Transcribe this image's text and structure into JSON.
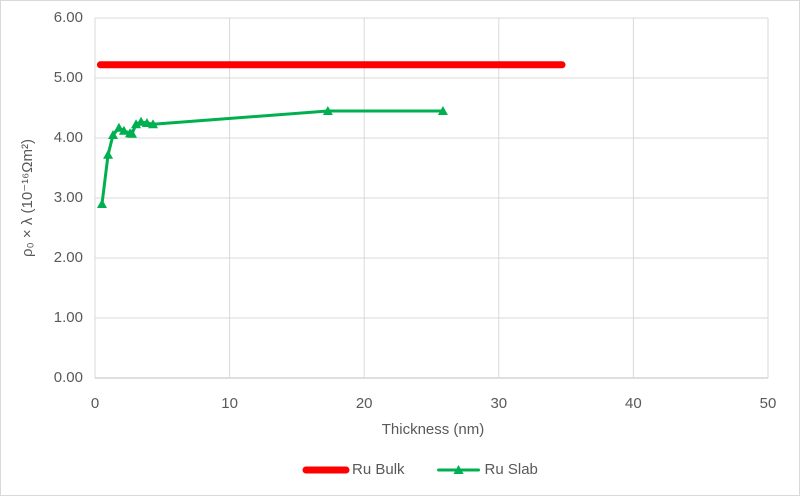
{
  "chart_data": {
    "type": "line",
    "x_label": "Thickness (nm)",
    "y_label": "ρ₀ × λ (10⁻¹⁶Ωm²)",
    "xlim": [
      0,
      50
    ],
    "xticks": [
      0,
      10,
      20,
      30,
      40,
      50
    ],
    "ylim": [
      0,
      6
    ],
    "yticks": [
      {
        "value": 0,
        "label": "0.00"
      },
      {
        "value": 1,
        "label": "1.00"
      },
      {
        "value": 2,
        "label": "2.00"
      },
      {
        "value": 3,
        "label": "3.00"
      },
      {
        "value": 4,
        "label": "4.00"
      },
      {
        "value": 5,
        "label": "5.00"
      },
      {
        "value": 6,
        "label": "6.00"
      }
    ],
    "grid": true,
    "legend": "bottom",
    "series": [
      {
        "name": "Ru Bulk",
        "color": "#ff0000",
        "marker": "none",
        "x": [
          0.4,
          34.7
        ],
        "values": [
          5.22,
          5.22
        ]
      },
      {
        "name": "Ru Slab",
        "color": "#00b050",
        "marker": "triangle",
        "x": [
          0.52,
          0.97,
          1.34,
          1.78,
          2.15,
          2.6,
          2.75,
          3.05,
          3.42,
          3.86,
          4.31,
          17.3,
          25.85
        ],
        "values": [
          2.9,
          3.72,
          4.05,
          4.17,
          4.12,
          4.08,
          4.07,
          4.23,
          4.27,
          4.25,
          4.23,
          4.45,
          4.45
        ]
      }
    ]
  }
}
